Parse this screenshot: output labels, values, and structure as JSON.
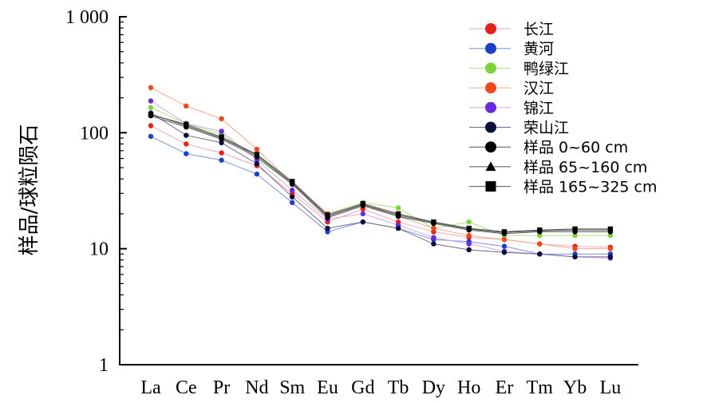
{
  "chart_data": {
    "type": "line",
    "title": "",
    "xlabel": "",
    "ylabel": "样品/球粒陨石",
    "y_scale": "log",
    "ylim": [
      1,
      1000
    ],
    "y_ticks": [
      {
        "value": 1,
        "label": "1"
      },
      {
        "value": 10,
        "label": "10"
      },
      {
        "value": 100,
        "label": "100"
      },
      {
        "value": 1000,
        "label": "1 000"
      }
    ],
    "categories": [
      "La",
      "Ce",
      "Pr",
      "Nd",
      "Sm",
      "Eu",
      "Gd",
      "Tb",
      "Dy",
      "Ho",
      "Er",
      "Tm",
      "Yb",
      "Lu"
    ],
    "grid": false,
    "legend_position": "top-right",
    "series": [
      {
        "name": "长江",
        "color": "#e8201c",
        "line_color": "#f2a8b4",
        "marker": "circle",
        "values": [
          115,
          80,
          67,
          52,
          30,
          17,
          22,
          17,
          14,
          12.5,
          12,
          11,
          10.5,
          10.3
        ]
      },
      {
        "name": "黄河",
        "color": "#1e3fc8",
        "line_color": "#7a8fe0",
        "marker": "circle",
        "values": [
          93,
          66,
          58,
          44,
          25,
          14,
          17,
          15,
          12,
          11.5,
          10.5,
          9,
          9,
          9
        ]
      },
      {
        "name": "鸭绿江",
        "color": "#7cd43a",
        "line_color": "#a8e47e",
        "marker": "circle",
        "values": [
          165,
          120,
          98,
          60,
          36,
          20,
          25,
          22.5,
          15,
          17,
          13,
          13,
          13,
          13
        ]
      },
      {
        "name": "汉江",
        "color": "#f04818",
        "line_color": "#f4a890",
        "marker": "circle",
        "values": [
          245,
          170,
          132,
          72,
          37,
          20,
          24,
          19,
          15,
          13,
          12,
          11,
          10,
          10
        ]
      },
      {
        "name": "锦江",
        "color": "#6a2ae0",
        "line_color": "#d8a8e8",
        "marker": "circle",
        "values": [
          188,
          120,
          103,
          58,
          32,
          18,
          20,
          16,
          12.5,
          11,
          9.5,
          9,
          8.5,
          8.3
        ]
      },
      {
        "name": "荣山江",
        "color": "#0a0f3c",
        "line_color": "#6a6a8a",
        "marker": "circle",
        "values": [
          148,
          95,
          82,
          54,
          28,
          15,
          17,
          15,
          11,
          9.8,
          9.3,
          9,
          8.5,
          8.5
        ]
      },
      {
        "name": "样品 0~60 cm",
        "color": "#000000",
        "line_color": "#555555",
        "marker": "circle",
        "values": [
          140,
          112,
          88,
          62,
          36,
          18.5,
          23.5,
          19,
          16.5,
          14.5,
          13.5,
          14,
          14,
          14
        ]
      },
      {
        "name": "样品 65~160 cm",
        "color": "#000000",
        "line_color": "#555555",
        "marker": "triangle",
        "values": [
          145,
          115,
          90,
          64,
          37,
          19,
          24,
          19.5,
          16.8,
          14.8,
          13.8,
          14.3,
          14.5,
          14.5
        ]
      },
      {
        "name": "样品 165~325 cm",
        "color": "#000000",
        "line_color": "#555555",
        "marker": "square",
        "values": [
          143,
          118,
          92,
          65,
          38,
          19.5,
          24.5,
          20,
          17,
          15,
          14,
          14.5,
          14.8,
          14.8
        ]
      }
    ]
  }
}
